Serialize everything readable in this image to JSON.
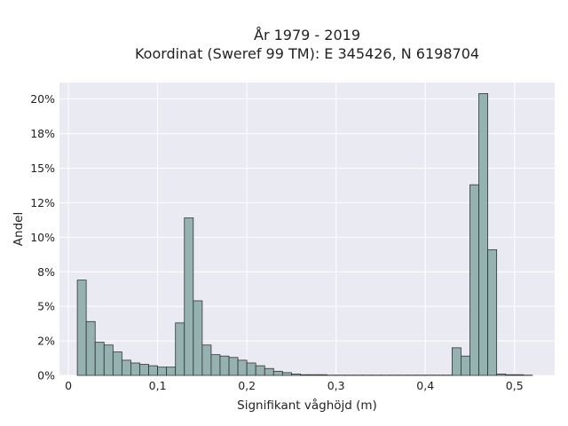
{
  "chart_data": {
    "type": "bar",
    "title_lines": [
      "År 1979 - 2019",
      "Koordinat (Sweref 99 TM): E 345426, N 6198704"
    ],
    "xlabel": "Signifikant våghöjd (m)",
    "ylabel": "Andel",
    "xlim": [
      -0.01,
      0.545
    ],
    "ylim": [
      0,
      21.2
    ],
    "x_ticks": [
      {
        "value": 0,
        "label": "0"
      },
      {
        "value": 0.1,
        "label": "0,1"
      },
      {
        "value": 0.2,
        "label": "0,2"
      },
      {
        "value": 0.3,
        "label": "0,3"
      },
      {
        "value": 0.4,
        "label": "0,4"
      },
      {
        "value": 0.5,
        "label": "0,5"
      }
    ],
    "y_ticks": [
      {
        "value": 0,
        "label": "0%"
      },
      {
        "value": 2.5,
        "label": "2%"
      },
      {
        "value": 5,
        "label": "5%"
      },
      {
        "value": 7.5,
        "label": "8%"
      },
      {
        "value": 10,
        "label": "10%"
      },
      {
        "value": 12.5,
        "label": "12%"
      },
      {
        "value": 15,
        "label": "15%"
      },
      {
        "value": 17.5,
        "label": "18%"
      },
      {
        "value": 20,
        "label": "20%"
      }
    ],
    "grid": true,
    "bin_width": 0.01,
    "bin_starts": [
      0.01,
      0.02,
      0.03,
      0.04,
      0.05,
      0.06,
      0.07,
      0.08,
      0.09,
      0.1,
      0.11,
      0.12,
      0.13,
      0.14,
      0.15,
      0.16,
      0.17,
      0.18,
      0.19,
      0.2,
      0.21,
      0.22,
      0.23,
      0.24,
      0.25,
      0.26,
      0.27,
      0.28,
      0.29,
      0.3,
      0.31,
      0.32,
      0.33,
      0.34,
      0.35,
      0.36,
      0.37,
      0.38,
      0.39,
      0.4,
      0.41,
      0.42,
      0.43,
      0.44,
      0.45,
      0.46,
      0.47,
      0.48,
      0.49,
      0.5,
      0.51
    ],
    "values": [
      6.9,
      3.9,
      2.4,
      2.2,
      1.7,
      1.1,
      0.9,
      0.8,
      0.7,
      0.6,
      0.6,
      3.8,
      11.4,
      5.4,
      2.2,
      1.5,
      1.4,
      1.3,
      1.1,
      0.9,
      0.7,
      0.5,
      0.3,
      0.2,
      0.1,
      0.05,
      0.05,
      0.05,
      0.02,
      0.02,
      0.02,
      0.02,
      0.02,
      0.02,
      0.02,
      0.02,
      0.02,
      0.02,
      0.02,
      0.02,
      0.02,
      0.02,
      2.0,
      1.4,
      13.8,
      20.4,
      9.1,
      0.1,
      0.05,
      0.05,
      0.02
    ]
  },
  "colors": {
    "plot_bg": "#eaeaf2",
    "bar_fill": "#95b1b0",
    "bar_edge": "#333333",
    "grid": "#ffffff"
  }
}
